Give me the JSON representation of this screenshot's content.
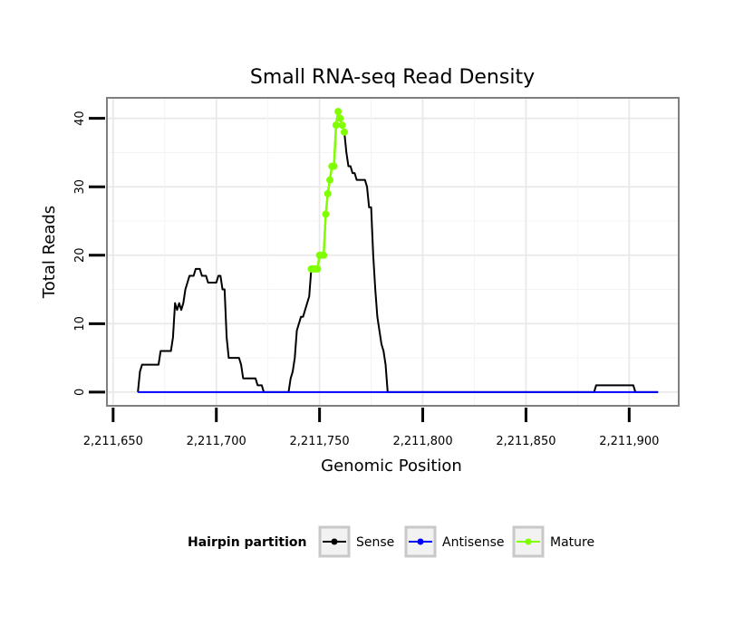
{
  "chart_data": {
    "type": "line",
    "title": "Small RNA-seq Read Density",
    "xlabel": "Genomic Position",
    "ylabel": "Total Reads",
    "xlim": [
      2211647,
      2211924
    ],
    "ylim": [
      -2,
      43
    ],
    "x_ticks": [
      2211650,
      2211700,
      2211750,
      2211800,
      2211850,
      2211900
    ],
    "x_tick_labels": [
      "2,211,650",
      "2,211,700",
      "2,211,750",
      "2,211,800",
      "2,211,850",
      "2,211,900"
    ],
    "y_ticks": [
      0,
      10,
      20,
      30,
      40
    ],
    "y_tick_labels": [
      "0",
      "10",
      "20",
      "30",
      "40"
    ],
    "grid": true,
    "legend": {
      "title": "Hairpin partition",
      "position": "bottom",
      "entries": [
        "Sense",
        "Antisense",
        "Mature"
      ]
    },
    "series": [
      {
        "name": "Sense",
        "color": "#000000",
        "points": [
          [
            2211662,
            0
          ],
          [
            2211663,
            3
          ],
          [
            2211664,
            4
          ],
          [
            2211672,
            4
          ],
          [
            2211673,
            6
          ],
          [
            2211678,
            6
          ],
          [
            2211679,
            8
          ],
          [
            2211680,
            13
          ],
          [
            2211681,
            12
          ],
          [
            2211682,
            13
          ],
          [
            2211683,
            12
          ],
          [
            2211684,
            13
          ],
          [
            2211685,
            15
          ],
          [
            2211686,
            16
          ],
          [
            2211687,
            17
          ],
          [
            2211689,
            17
          ],
          [
            2211690,
            18
          ],
          [
            2211692,
            18
          ],
          [
            2211693,
            17
          ],
          [
            2211695,
            17
          ],
          [
            2211696,
            16
          ],
          [
            2211700,
            16
          ],
          [
            2211701,
            17
          ],
          [
            2211702,
            17
          ],
          [
            2211703,
            15
          ],
          [
            2211704,
            15
          ],
          [
            2211705,
            8
          ],
          [
            2211706,
            5
          ],
          [
            2211711,
            5
          ],
          [
            2211712,
            4
          ],
          [
            2211713,
            2
          ],
          [
            2211719,
            2
          ],
          [
            2211720,
            1
          ],
          [
            2211722,
            1
          ],
          [
            2211723,
            0
          ],
          [
            2211735,
            0
          ],
          [
            2211736,
            2
          ],
          [
            2211737,
            3
          ],
          [
            2211738,
            5
          ],
          [
            2211739,
            9
          ],
          [
            2211740,
            10
          ],
          [
            2211741,
            11
          ],
          [
            2211742,
            11
          ],
          [
            2211743,
            12
          ],
          [
            2211744,
            13
          ],
          [
            2211745,
            14
          ],
          [
            2211746,
            18
          ],
          [
            2211747,
            18
          ],
          [
            2211748,
            18
          ],
          [
            2211749,
            18
          ],
          [
            2211750,
            20
          ],
          [
            2211751,
            20
          ],
          [
            2211752,
            20
          ],
          [
            2211753,
            26
          ],
          [
            2211754,
            29
          ],
          [
            2211755,
            31
          ],
          [
            2211756,
            33
          ],
          [
            2211757,
            33
          ],
          [
            2211758,
            39
          ],
          [
            2211759,
            41
          ],
          [
            2211760,
            40
          ],
          [
            2211761,
            39
          ],
          [
            2211762,
            38
          ],
          [
            2211763,
            35
          ],
          [
            2211764,
            33
          ],
          [
            2211765,
            33
          ],
          [
            2211766,
            32
          ],
          [
            2211767,
            32
          ],
          [
            2211768,
            31
          ],
          [
            2211772,
            31
          ],
          [
            2211773,
            30
          ],
          [
            2211774,
            27
          ],
          [
            2211775,
            27
          ],
          [
            2211776,
            20
          ],
          [
            2211777,
            15
          ],
          [
            2211778,
            11
          ],
          [
            2211779,
            9
          ],
          [
            2211780,
            7
          ],
          [
            2211781,
            6
          ],
          [
            2211782,
            4
          ],
          [
            2211783,
            0
          ],
          [
            2211883,
            0
          ],
          [
            2211884,
            1
          ],
          [
            2211902,
            1
          ],
          [
            2211903,
            0
          ],
          [
            2211914,
            0
          ]
        ]
      },
      {
        "name": "Antisense",
        "color": "#0000ff",
        "points": [
          [
            2211662,
            0
          ],
          [
            2211914,
            0
          ]
        ]
      },
      {
        "name": "Mature",
        "color": "#7fff00",
        "points": [
          [
            2211746,
            18
          ],
          [
            2211747,
            18
          ],
          [
            2211748,
            18
          ],
          [
            2211749,
            18
          ],
          [
            2211750,
            20
          ],
          [
            2211751,
            20
          ],
          [
            2211752,
            20
          ],
          [
            2211753,
            26
          ],
          [
            2211754,
            29
          ],
          [
            2211755,
            31
          ],
          [
            2211756,
            33
          ],
          [
            2211757,
            33
          ],
          [
            2211758,
            39
          ],
          [
            2211759,
            41
          ],
          [
            2211760,
            40
          ],
          [
            2211761,
            39
          ],
          [
            2211762,
            38
          ]
        ]
      }
    ]
  }
}
